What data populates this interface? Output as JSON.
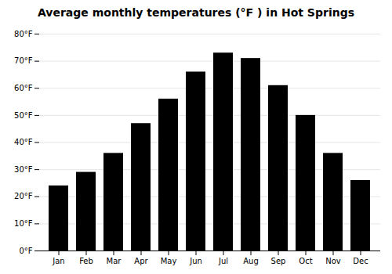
{
  "chart_data": {
    "type": "bar",
    "title": "Average monthly temperatures (°F ) in Hot Springs",
    "categories": [
      "Jan",
      "Feb",
      "Mar",
      "Apr",
      "May",
      "Jun",
      "Jul",
      "Aug",
      "Sep",
      "Oct",
      "Nov",
      "Dec"
    ],
    "values": [
      24,
      29,
      36,
      47,
      56,
      66,
      73,
      71,
      61,
      50,
      36,
      26
    ],
    "ylim": [
      0,
      80
    ],
    "yticks": [
      {
        "value": 0,
        "label": "0°F"
      },
      {
        "value": 10,
        "label": "10°F"
      },
      {
        "value": 20,
        "label": "20°F"
      },
      {
        "value": 30,
        "label": "30°F"
      },
      {
        "value": 40,
        "label": "40°F"
      },
      {
        "value": 50,
        "label": "50°F"
      },
      {
        "value": 60,
        "label": "60°F"
      },
      {
        "value": 70,
        "label": "70°F"
      },
      {
        "value": 80,
        "label": "80°F"
      }
    ],
    "grid": true
  }
}
